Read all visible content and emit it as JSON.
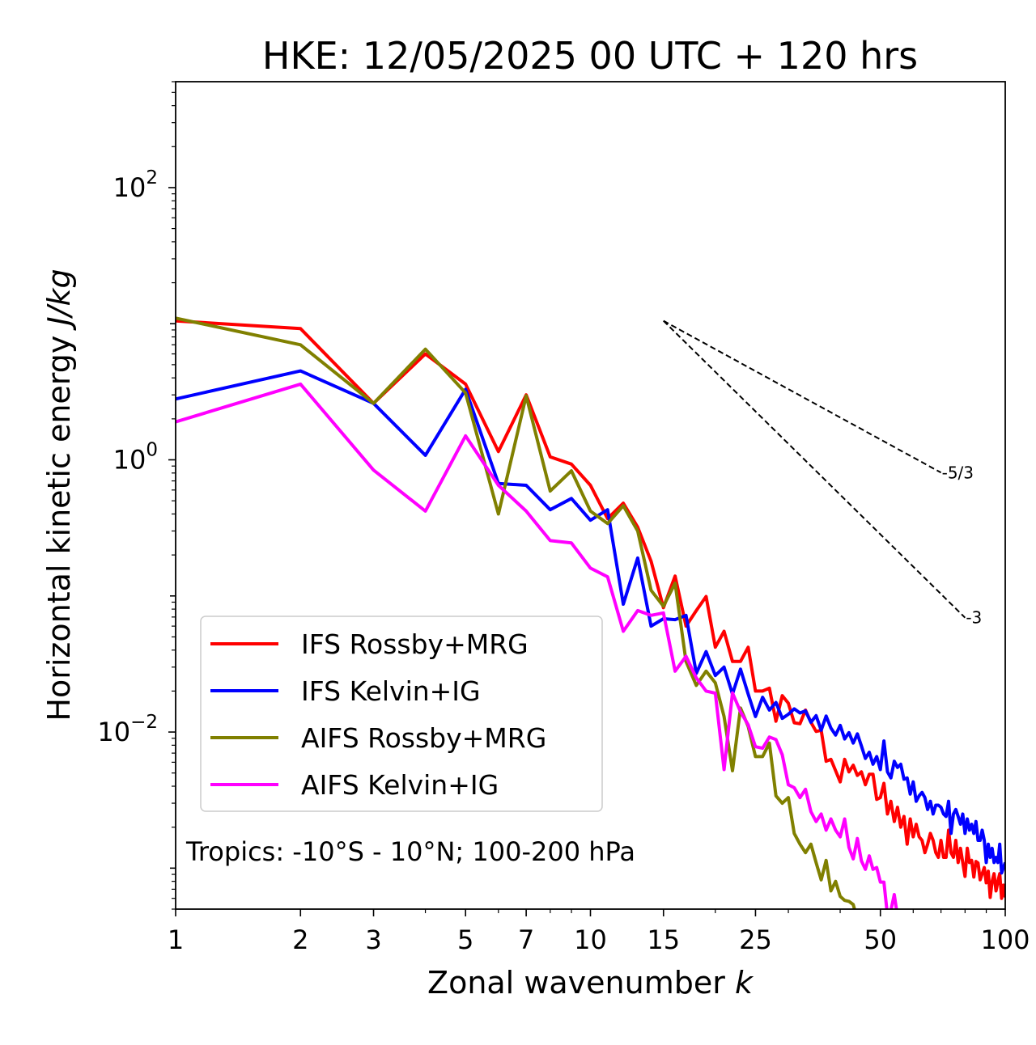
{
  "chart_data": {
    "type": "line",
    "title": "HKE: 12/05/2025 00 UTC + 120 hrs",
    "xlabel": "Zonal wavenumber",
    "xlabel_var": "k",
    "ylabel": "Horizontal kinetic energy",
    "ylabel_unit": "J/kg",
    "xscale": "log",
    "yscale": "log",
    "xlim": [
      1,
      100
    ],
    "ylim": [
      0.0005,
      600
    ],
    "x_ticks": [
      1,
      2,
      3,
      5,
      7,
      10,
      15,
      25,
      50,
      100
    ],
    "x_tick_labels": [
      "1",
      "2",
      "3",
      "5",
      "7",
      "10",
      "15",
      "25",
      "50",
      "100"
    ],
    "y_ticks": [
      0.01,
      1,
      100
    ],
    "y_tick_labels": [
      {
        "base": "10",
        "exp": "−2"
      },
      {
        "base": "10",
        "exp": "0"
      },
      {
        "base": "10",
        "exp": "2"
      }
    ],
    "annotation": "Tropics: -10°S - 10°N; 100-200 hPa",
    "legend_position": "lower-left",
    "reference_lines": [
      {
        "label": "-5/3",
        "slope": -1.6667,
        "x0": 15,
        "y0": 10.5,
        "x1": 70
      },
      {
        "label": "-3",
        "slope": -3,
        "x0": 15,
        "y0": 10.5,
        "x1": 80
      }
    ],
    "series": [
      {
        "name": "IFS Rossby+MRG",
        "color": "#ff0000",
        "points": [
          [
            1,
            10.5
          ],
          [
            2,
            9.2
          ],
          [
            3,
            2.6
          ],
          [
            4,
            6.0
          ],
          [
            5,
            3.6
          ],
          [
            6,
            1.15
          ],
          [
            7,
            3.0
          ],
          [
            8,
            1.05
          ],
          [
            9,
            0.93
          ],
          [
            10,
            0.65
          ],
          [
            11,
            0.37
          ],
          [
            12,
            0.48
          ],
          [
            13,
            0.32
          ],
          [
            14,
            0.18
          ],
          [
            15,
            0.082
          ],
          [
            16,
            0.14
          ],
          [
            17,
            0.06
          ],
          [
            18,
            0.078
          ],
          [
            19,
            0.099
          ],
          [
            20,
            0.042
          ],
          [
            21,
            0.055
          ],
          [
            22,
            0.033
          ],
          [
            23,
            0.033
          ],
          [
            24,
            0.042
          ],
          [
            25,
            0.02
          ],
          [
            26,
            0.02
          ],
          [
            27,
            0.021
          ],
          [
            28,
            0.012
          ],
          [
            29,
            0.0185
          ],
          [
            30,
            0.0163
          ],
          [
            31,
            0.0117
          ],
          [
            32,
            0.0115
          ],
          [
            33,
            0.0145
          ],
          [
            34,
            0.0118
          ],
          [
            35,
            0.0101
          ],
          [
            36,
            0.0103
          ],
          [
            37,
            0.0061
          ],
          [
            38,
            0.0063
          ],
          [
            39,
            0.0052
          ],
          [
            40,
            0.0043
          ],
          [
            41,
            0.0063
          ],
          [
            42,
            0.0051
          ],
          [
            43,
            0.0057
          ],
          [
            44,
            0.0048
          ],
          [
            45,
            0.0051
          ],
          [
            46,
            0.0041
          ],
          [
            47,
            0.0049
          ],
          [
            48,
            0.0049
          ],
          [
            49,
            0.0032
          ],
          [
            50,
            0.0033
          ],
          [
            51,
            0.0042
          ],
          [
            52,
            0.0025
          ],
          [
            53,
            0.0031
          ],
          [
            54,
            0.0022
          ],
          [
            55,
            0.0028
          ],
          [
            56,
            0.002
          ],
          [
            57,
            0.0024
          ],
          [
            58,
            0.0015
          ],
          [
            59,
            0.0023
          ],
          [
            60,
            0.0017
          ],
          [
            61,
            0.0021
          ],
          [
            62,
            0.0017
          ],
          [
            63,
            0.0016
          ],
          [
            64,
            0.0013
          ],
          [
            65,
            0.0015
          ],
          [
            66,
            0.0018
          ],
          [
            67,
            0.0016
          ],
          [
            68,
            0.0013
          ],
          [
            69,
            0.0012
          ],
          [
            70,
            0.0016
          ],
          [
            71,
            0.0012
          ],
          [
            72,
            0.0012
          ],
          [
            73,
            0.0019
          ],
          [
            74,
            0.0013
          ],
          [
            75,
            0.0012
          ],
          [
            76,
            0.0016
          ],
          [
            77,
            0.0011
          ],
          [
            78,
            0.0014
          ],
          [
            79,
            0.0011
          ],
          [
            80,
            0.00087
          ],
          [
            81,
            0.0014
          ],
          [
            82,
            0.0011
          ],
          [
            83,
            0.00114
          ],
          [
            84,
            0.00086
          ],
          [
            85,
            0.00112
          ],
          [
            86,
            0.00109
          ],
          [
            87,
            0.00082
          ],
          [
            88,
            0.00091
          ],
          [
            89,
            0.00101
          ],
          [
            90,
            0.00078
          ],
          [
            91,
            0.00095
          ],
          [
            92,
            0.00061
          ],
          [
            93,
            0.0008
          ],
          [
            94,
            0.00091
          ],
          [
            95,
            0.00068
          ],
          [
            96,
            0.0008
          ],
          [
            97,
            0.00091
          ],
          [
            98,
            0.0006
          ],
          [
            99,
            0.00075
          ],
          [
            100,
            0.00061
          ]
        ]
      },
      {
        "name": "IFS Kelvin+IG",
        "color": "#0000ff",
        "points": [
          [
            1,
            2.8
          ],
          [
            2,
            4.5
          ],
          [
            3,
            2.6
          ],
          [
            4,
            1.08
          ],
          [
            5,
            3.3
          ],
          [
            6,
            0.67
          ],
          [
            7,
            0.65
          ],
          [
            8,
            0.43
          ],
          [
            9,
            0.52
          ],
          [
            10,
            0.36
          ],
          [
            11,
            0.43
          ],
          [
            12,
            0.087
          ],
          [
            13,
            0.19
          ],
          [
            14,
            0.06
          ],
          [
            15,
            0.068
          ],
          [
            16,
            0.067
          ],
          [
            17,
            0.072
          ],
          [
            18,
            0.027
          ],
          [
            19,
            0.039
          ],
          [
            20,
            0.026
          ],
          [
            21,
            0.03
          ],
          [
            22,
            0.019
          ],
          [
            23,
            0.029
          ],
          [
            24,
            0.019
          ],
          [
            25,
            0.013
          ],
          [
            26,
            0.018
          ],
          [
            27,
            0.0145
          ],
          [
            28,
            0.0165
          ],
          [
            29,
            0.0126
          ],
          [
            30,
            0.0135
          ],
          [
            31,
            0.0148
          ],
          [
            32,
            0.0138
          ],
          [
            33,
            0.0143
          ],
          [
            34,
            0.0118
          ],
          [
            35,
            0.0132
          ],
          [
            36,
            0.0103
          ],
          [
            37,
            0.0131
          ],
          [
            38,
            0.0107
          ],
          [
            39,
            0.0095
          ],
          [
            40,
            0.0112
          ],
          [
            41,
            0.0089
          ],
          [
            42,
            0.0099
          ],
          [
            43,
            0.0083
          ],
          [
            44,
            0.0097
          ],
          [
            45,
            0.0079
          ],
          [
            46,
            0.0064
          ],
          [
            47,
            0.0071
          ],
          [
            48,
            0.0058
          ],
          [
            49,
            0.0066
          ],
          [
            50,
            0.0053
          ],
          [
            51,
            0.0086
          ],
          [
            52,
            0.0051
          ],
          [
            53,
            0.0046
          ],
          [
            54,
            0.0061
          ],
          [
            55,
            0.0055
          ],
          [
            56,
            0.0058
          ],
          [
            57,
            0.0045
          ],
          [
            58,
            0.0046
          ],
          [
            59,
            0.0035
          ],
          [
            60,
            0.0043
          ],
          [
            61,
            0.0031
          ],
          [
            62,
            0.0034
          ],
          [
            63,
            0.0036
          ],
          [
            64,
            0.0033
          ],
          [
            65,
            0.0027
          ],
          [
            66,
            0.0031
          ],
          [
            67,
            0.0025
          ],
          [
            68,
            0.0029
          ],
          [
            69,
            0.0029
          ],
          [
            70,
            0.0028
          ],
          [
            71,
            0.0025
          ],
          [
            72,
            0.0024
          ],
          [
            73,
            0.0031
          ],
          [
            74,
            0.0018
          ],
          [
            75,
            0.0025
          ],
          [
            76,
            0.0027
          ],
          [
            77,
            0.0024
          ],
          [
            78,
            0.0021
          ],
          [
            79,
            0.0025
          ],
          [
            80,
            0.0018
          ],
          [
            81,
            0.0023
          ],
          [
            82,
            0.0019
          ],
          [
            83,
            0.0021
          ],
          [
            84,
            0.0018
          ],
          [
            85,
            0.0022
          ],
          [
            86,
            0.0016
          ],
          [
            87,
            0.0016
          ],
          [
            88,
            0.0019
          ],
          [
            89,
            0.0016
          ],
          [
            90,
            0.0011
          ],
          [
            91,
            0.0015
          ],
          [
            92,
            0.0012
          ],
          [
            93,
            0.0014
          ],
          [
            94,
            0.0011
          ],
          [
            95,
            0.0012
          ],
          [
            96,
            0.0011
          ],
          [
            97,
            0.0015
          ],
          [
            98,
            0.00092
          ],
          [
            99,
            0.00101
          ],
          [
            100,
            0.0011
          ]
        ]
      },
      {
        "name": "AIFS Rossby+MRG",
        "color": "#808000",
        "points": [
          [
            1,
            11.0
          ],
          [
            2,
            7.0
          ],
          [
            3,
            2.6
          ],
          [
            4,
            6.5
          ],
          [
            5,
            3.1
          ],
          [
            6,
            0.4
          ],
          [
            7,
            2.95
          ],
          [
            8,
            0.59
          ],
          [
            9,
            0.83
          ],
          [
            10,
            0.42
          ],
          [
            11,
            0.34
          ],
          [
            12,
            0.46
          ],
          [
            13,
            0.3
          ],
          [
            14,
            0.11
          ],
          [
            15,
            0.084
          ],
          [
            16,
            0.124
          ],
          [
            17,
            0.033
          ],
          [
            18,
            0.022
          ],
          [
            19,
            0.028
          ],
          [
            20,
            0.023
          ],
          [
            21,
            0.013
          ],
          [
            22,
            0.0052
          ],
          [
            23,
            0.015
          ],
          [
            24,
            0.011
          ],
          [
            25,
            0.0066
          ],
          [
            26,
            0.0066
          ],
          [
            27,
            0.0083
          ],
          [
            28,
            0.0034
          ],
          [
            29,
            0.003
          ],
          [
            30,
            0.0033
          ],
          [
            31,
            0.0018
          ],
          [
            32,
            0.0015
          ],
          [
            33,
            0.0013
          ],
          [
            34,
            0.0015
          ],
          [
            35,
            0.0011
          ],
          [
            36,
            0.00082
          ],
          [
            37,
            0.00114
          ],
          [
            38,
            0.00068
          ],
          [
            39,
            0.0008
          ],
          [
            40,
            0.00062
          ],
          [
            41,
            0.00058
          ],
          [
            42,
            0.00057
          ],
          [
            43,
            0.00054
          ],
          [
            44,
            0.00042
          ],
          [
            45,
            0.00038
          ]
        ]
      },
      {
        "name": "AIFS Kelvin+IG",
        "color": "#ff00ff",
        "points": [
          [
            1,
            1.9
          ],
          [
            2,
            3.6
          ],
          [
            3,
            0.84
          ],
          [
            4,
            0.42
          ],
          [
            5,
            1.5
          ],
          [
            6,
            0.65
          ],
          [
            7,
            0.42
          ],
          [
            8,
            0.255
          ],
          [
            9,
            0.245
          ],
          [
            10,
            0.16
          ],
          [
            11,
            0.138
          ],
          [
            12,
            0.055
          ],
          [
            13,
            0.078
          ],
          [
            14,
            0.072
          ],
          [
            15,
            0.075
          ],
          [
            16,
            0.028
          ],
          [
            17,
            0.036
          ],
          [
            18,
            0.025
          ],
          [
            19,
            0.02
          ],
          [
            20,
            0.0193
          ],
          [
            21,
            0.0053
          ],
          [
            22,
            0.0194
          ],
          [
            23,
            0.0141
          ],
          [
            24,
            0.0113
          ],
          [
            25,
            0.0078
          ],
          [
            26,
            0.0076
          ],
          [
            27,
            0.0092
          ],
          [
            28,
            0.0088
          ],
          [
            29,
            0.0068
          ],
          [
            30,
            0.0041
          ],
          [
            31,
            0.0039
          ],
          [
            32,
            0.0033
          ],
          [
            33,
            0.0038
          ],
          [
            34,
            0.0026
          ],
          [
            35,
            0.0022
          ],
          [
            36,
            0.0025
          ],
          [
            37,
            0.0019
          ],
          [
            38,
            0.0023
          ],
          [
            39,
            0.0019
          ],
          [
            40,
            0.0017
          ],
          [
            41,
            0.0023
          ],
          [
            42,
            0.00142
          ],
          [
            43,
            0.00117
          ],
          [
            44,
            0.00165
          ],
          [
            45,
            0.00113
          ],
          [
            46,
            0.00098
          ],
          [
            47,
            0.00123
          ],
          [
            48,
            0.00098
          ],
          [
            49,
            0.00101
          ],
          [
            50,
            0.00079
          ],
          [
            51,
            0.00079
          ],
          [
            52,
            0.00045
          ],
          [
            53,
            0.00049
          ],
          [
            54,
            0.00064
          ],
          [
            55,
            0.00044
          ]
        ]
      }
    ]
  }
}
